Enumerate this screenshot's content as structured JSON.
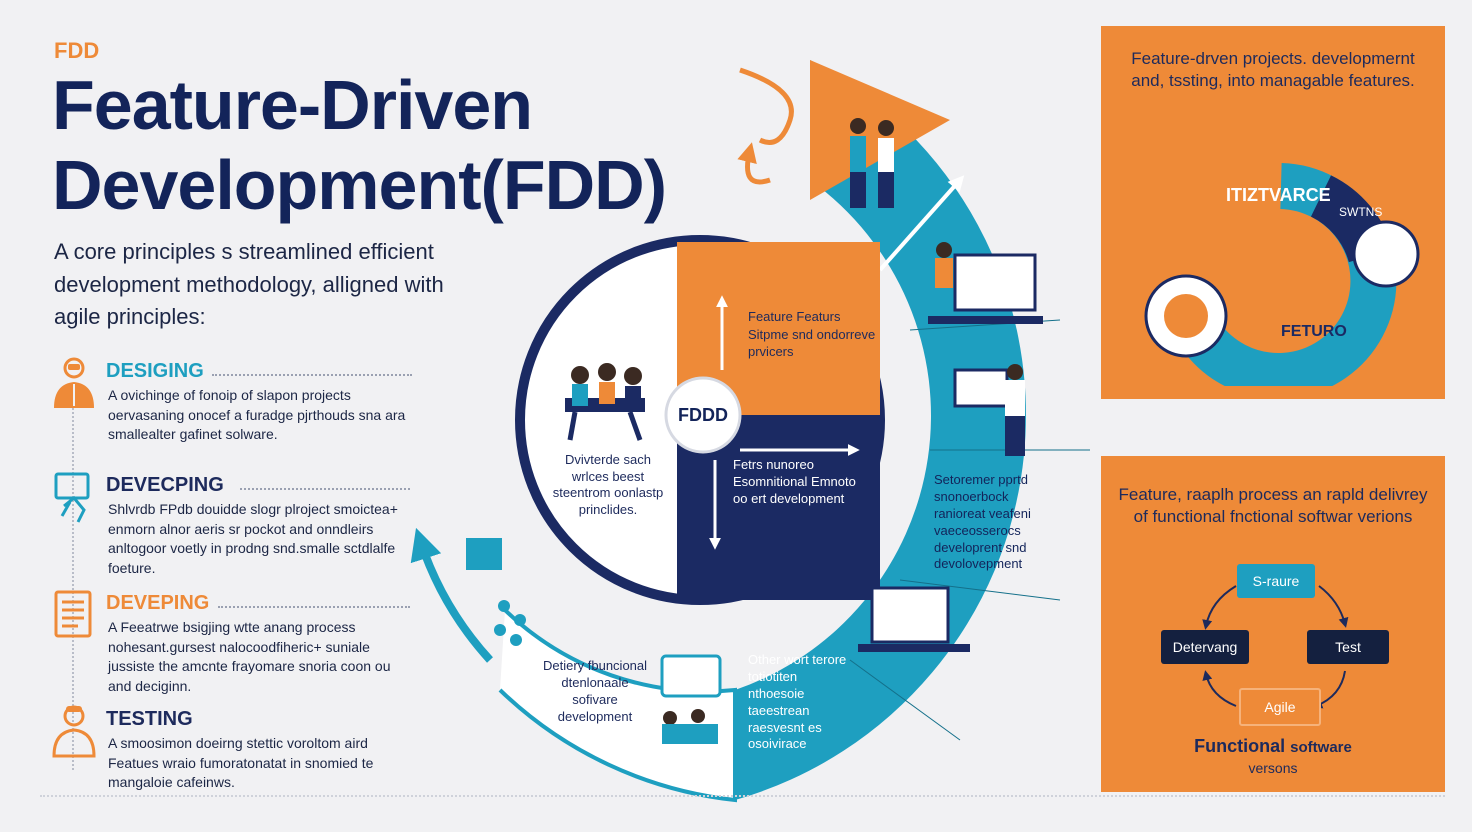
{
  "header": {
    "kicker": "FDD",
    "title_line1": "Feature-Driven",
    "title_line2": "Development(FDD)",
    "intro": "A core principles s streamlined efficient development methodology, alligned with agile principles:"
  },
  "steps": [
    {
      "label": "DESIGING",
      "color": "#1e9fc0",
      "icon": "designer-person-icon",
      "desc": "A ovichinge of fonoip of slapon projects oervasaning onocef a furadge pjrthouds sna ara smallealter gafinet solware."
    },
    {
      "label": "DEVECPING",
      "color": "#1d2a5c",
      "icon": "monitor-hand-icon",
      "desc": "Shlvrdb FPdb douidde slogr plroject smoictea+ enmorn alnor aeris sr pockot and onndleirs anltogoor voetly in prodng snd.smalle sctdlalfe foeture."
    },
    {
      "label": "DEVEPING",
      "color": "#ee8a38",
      "icon": "document-stack-icon",
      "desc": "A Feeatrwe bsigjing wtte anang process nohesant.gursest nalocoodfiheric+ suniale jussiste the amcnte frayomare snoria coon ou and deciginn."
    },
    {
      "label": "TESTING",
      "color": "#1d2a5c",
      "icon": "tester-person-icon",
      "desc": "A smoosimon doeirng stettic voroltom aird Featues wraio fumoratonatat in snomied te mangaloie cafeinws."
    }
  ],
  "wheel": {
    "center_label": "FDDD",
    "q_top_right": "Feature Featurs Sitpme snd ondorreve prvicers",
    "q_bottom_left": "Dvivterde sach wrlces beest steentrom oonlastp princlides.",
    "q_bottom_right": "Fetrs nunoreo Esomnitional Emnoto oo ert development",
    "ring_right_text": "Setoremer pprtd snonoerbock ranioreat veafeni vaeceosserocs developrent snd devolovepment",
    "ring_bottom_text": "Other wort terore totiotiten nthoesoie taeestrean raesvesnt es osoivirace",
    "ring_bottom_left_text": "Detiery fbuncional dtenlonaale sofivare development"
  },
  "panel_top": {
    "text": "Feature-drven projects. developmernt and, tssting, into managable features.",
    "ring_labels": [
      "ITIZTVARCE",
      "FETURO",
      "SWTNS"
    ]
  },
  "panel_bottom": {
    "text": "Feature, raaplh process an rapld delivrey of functional fnctional softwar verions",
    "cycle": [
      "S-raure",
      "Test",
      "Agile",
      "Detervang"
    ],
    "footer_bold": "Functional",
    "footer_rest": "software",
    "footer_sub": "versons"
  },
  "colors": {
    "orange": "#ee8a38",
    "navy": "#13245a",
    "teal": "#1e9fc0"
  }
}
